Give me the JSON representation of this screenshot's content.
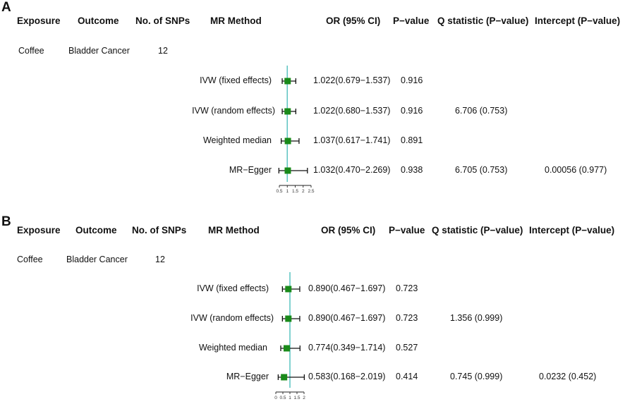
{
  "colors": {
    "ref_line": "#63c6c4",
    "marker": "#1a8a1a",
    "whisker": "#111111"
  },
  "columns": {
    "exposure": "Exposure",
    "outcome": "Outcome",
    "nsnps": "No. of SNPs",
    "method": "MR Method",
    "or": "OR (95% CI)",
    "pvalue": "P−value",
    "q": "Q statistic (P−value)",
    "intercept": "Intercept (P−value)"
  },
  "chart_data": [
    {
      "type": "forest",
      "panel_label": "A",
      "exposure": "Coffee",
      "outcome": "Bladder Cancer",
      "nsnps": "12",
      "ref_value": 1,
      "xlim": [
        0.5,
        2.5
      ],
      "ticks": [
        0.5,
        1,
        1.5,
        2,
        2.5
      ],
      "tick_labels": [
        "0.5",
        "1",
        "1.5",
        "2",
        "2.5"
      ],
      "rows": [
        {
          "method": "IVW (fixed effects)",
          "or": 1.022,
          "lo": 0.679,
          "hi": 1.537,
          "or_text": "1.022(0.679−1.537)",
          "p": "0.916",
          "q": "",
          "intercept": ""
        },
        {
          "method": "IVW (random effects)",
          "or": 1.022,
          "lo": 0.68,
          "hi": 1.537,
          "or_text": "1.022(0.680−1.537)",
          "p": "0.916",
          "q": "6.706 (0.753)",
          "intercept": ""
        },
        {
          "method": "Weighted median",
          "or": 1.037,
          "lo": 0.617,
          "hi": 1.741,
          "or_text": "1.037(0.617−1.741)",
          "p": "0.891",
          "q": "",
          "intercept": ""
        },
        {
          "method": "MR−Egger",
          "or": 1.032,
          "lo": 0.47,
          "hi": 2.269,
          "or_text": "1.032(0.470−2.269)",
          "p": "0.938",
          "q": "6.705 (0.753)",
          "intercept": "0.00056 (0.977)"
        }
      ]
    },
    {
      "type": "forest",
      "panel_label": "B",
      "exposure": "Coffee",
      "outcome": "Bladder Cancer",
      "nsnps": "12",
      "ref_value": 1,
      "xlim": [
        0,
        2
      ],
      "ticks": [
        0,
        0.5,
        1,
        1.5,
        2
      ],
      "tick_labels": [
        "0",
        "0.5",
        "1",
        "1.5",
        "2"
      ],
      "rows": [
        {
          "method": "IVW (fixed effects)",
          "or": 0.89,
          "lo": 0.467,
          "hi": 1.697,
          "or_text": "0.890(0.467−1.697)",
          "p": "0.723",
          "q": "",
          "intercept": ""
        },
        {
          "method": "IVW (random effects)",
          "or": 0.89,
          "lo": 0.467,
          "hi": 1.697,
          "or_text": "0.890(0.467−1.697)",
          "p": "0.723",
          "q": "1.356 (0.999)",
          "intercept": ""
        },
        {
          "method": "Weighted median",
          "or": 0.774,
          "lo": 0.349,
          "hi": 1.714,
          "or_text": "0.774(0.349−1.714)",
          "p": "0.527",
          "q": "",
          "intercept": ""
        },
        {
          "method": "MR−Egger",
          "or": 0.583,
          "lo": 0.168,
          "hi": 2.019,
          "or_text": "0.583(0.168−2.019)",
          "p": "0.414",
          "q": "0.745 (0.999)",
          "intercept": "0.0232 (0.452)"
        }
      ]
    }
  ]
}
